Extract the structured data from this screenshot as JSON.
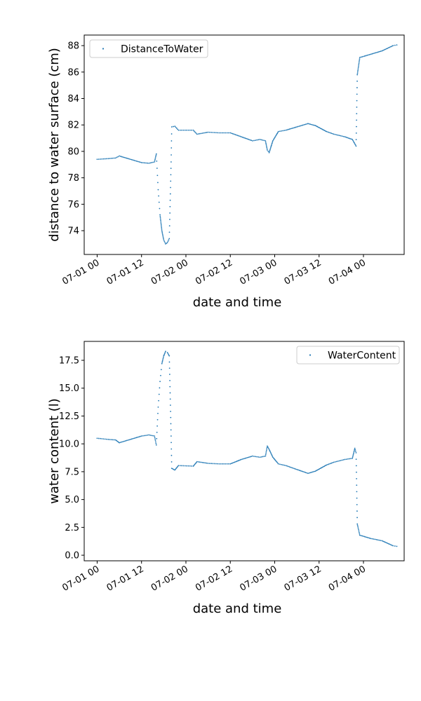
{
  "chart_data": [
    {
      "type": "scatter",
      "xlabel": "date and time",
      "ylabel": "distance to water surface (cm)",
      "ylim": [
        72.2,
        88.8
      ],
      "xlim": [
        "2019-06-30T20:30",
        "2019-07-04T11:00"
      ],
      "x_ticks": [
        {
          "t": "2019-07-01T00:00",
          "label": "07-01 00"
        },
        {
          "t": "2019-07-01T12:00",
          "label": "07-01 12"
        },
        {
          "t": "2019-07-02T00:00",
          "label": "07-02 00"
        },
        {
          "t": "2019-07-02T12:00",
          "label": "07-02 12"
        },
        {
          "t": "2019-07-03T00:00",
          "label": "07-03 00"
        },
        {
          "t": "2019-07-03T12:00",
          "label": "07-03 12"
        },
        {
          "t": "2019-07-04T00:00",
          "label": "07-04 00"
        }
      ],
      "y_ticks": [
        74,
        76,
        78,
        80,
        82,
        84,
        86,
        88
      ],
      "grid": false,
      "legend_position": "upper-left",
      "series": [
        {
          "name": "DistanceToWater",
          "color": "#1f77b4",
          "points": [
            [
              "2019-07-01T00:00",
              79.4
            ],
            [
              "2019-07-01T03:00",
              79.45
            ],
            [
              "2019-07-01T05:00",
              79.5
            ],
            [
              "2019-07-01T06:00",
              79.65
            ],
            [
              "2019-07-01T09:00",
              79.4
            ],
            [
              "2019-07-01T12:00",
              79.15
            ],
            [
              "2019-07-01T14:00",
              79.1
            ],
            [
              "2019-07-01T15:30",
              79.2
            ],
            [
              "2019-07-01T16:00",
              79.8
            ],
            [
              "2019-07-01T16:30",
              77.1
            ],
            [
              "2019-07-01T17:00",
              75.2
            ],
            [
              "2019-07-01T17:30",
              74.0
            ],
            [
              "2019-07-01T18:00",
              73.3
            ],
            [
              "2019-07-01T18:30",
              73.0
            ],
            [
              "2019-07-01T19:00",
              73.1
            ],
            [
              "2019-07-01T19:30",
              73.4
            ],
            [
              "2019-07-01T20:00",
              79.2
            ],
            [
              "2019-07-01T20:10",
              81.85
            ],
            [
              "2019-07-01T21:00",
              81.9
            ],
            [
              "2019-07-01T22:00",
              81.6
            ],
            [
              "2019-07-02T02:00",
              81.6
            ],
            [
              "2019-07-02T03:00",
              81.3
            ],
            [
              "2019-07-02T06:00",
              81.45
            ],
            [
              "2019-07-02T09:00",
              81.4
            ],
            [
              "2019-07-02T12:00",
              81.4
            ],
            [
              "2019-07-02T15:00",
              81.1
            ],
            [
              "2019-07-02T18:00",
              80.8
            ],
            [
              "2019-07-02T20:00",
              80.9
            ],
            [
              "2019-07-02T21:30",
              80.8
            ],
            [
              "2019-07-02T22:00",
              80.1
            ],
            [
              "2019-07-02T22:30",
              79.9
            ],
            [
              "2019-07-02T23:30",
              80.8
            ],
            [
              "2019-07-03T01:00",
              81.5
            ],
            [
              "2019-07-03T03:00",
              81.6
            ],
            [
              "2019-07-03T06:00",
              81.85
            ],
            [
              "2019-07-03T09:00",
              82.1
            ],
            [
              "2019-07-03T11:00",
              81.95
            ],
            [
              "2019-07-03T14:00",
              81.5
            ],
            [
              "2019-07-03T16:00",
              81.3
            ],
            [
              "2019-07-03T19:00",
              81.1
            ],
            [
              "2019-07-03T21:00",
              80.9
            ],
            [
              "2019-07-03T22:00",
              80.4
            ],
            [
              "2019-07-03T22:20",
              85.8
            ],
            [
              "2019-07-03T23:00",
              87.1
            ],
            [
              "2019-07-04T02:00",
              87.35
            ],
            [
              "2019-07-04T05:00",
              87.6
            ],
            [
              "2019-07-04T08:00",
              88.0
            ],
            [
              "2019-07-04T09:00",
              88.05
            ]
          ]
        }
      ]
    },
    {
      "type": "scatter",
      "xlabel": "date and time",
      "ylabel": "water content (l)",
      "ylim": [
        -0.5,
        19.2
      ],
      "xlim": [
        "2019-06-30T20:30",
        "2019-07-04T11:00"
      ],
      "x_ticks": [
        {
          "t": "2019-07-01T00:00",
          "label": "07-01 00"
        },
        {
          "t": "2019-07-01T12:00",
          "label": "07-01 12"
        },
        {
          "t": "2019-07-02T00:00",
          "label": "07-02 00"
        },
        {
          "t": "2019-07-02T12:00",
          "label": "07-02 12"
        },
        {
          "t": "2019-07-03T00:00",
          "label": "07-03 00"
        },
        {
          "t": "2019-07-03T12:00",
          "label": "07-03 12"
        },
        {
          "t": "2019-07-04T00:00",
          "label": "07-04 00"
        }
      ],
      "y_ticks": [
        "0.0",
        "2.5",
        "5.0",
        "7.5",
        "10.0",
        "12.5",
        "15.0",
        "17.5"
      ],
      "grid": false,
      "legend_position": "upper-right",
      "series": [
        {
          "name": "WaterContent",
          "color": "#1f77b4",
          "points": [
            [
              "2019-07-01T00:00",
              10.5
            ],
            [
              "2019-07-01T03:00",
              10.4
            ],
            [
              "2019-07-01T05:00",
              10.35
            ],
            [
              "2019-07-01T06:00",
              10.1
            ],
            [
              "2019-07-01T09:00",
              10.4
            ],
            [
              "2019-07-01T12:00",
              10.7
            ],
            [
              "2019-07-01T14:00",
              10.8
            ],
            [
              "2019-07-01T15:30",
              10.7
            ],
            [
              "2019-07-01T16:00",
              9.9
            ],
            [
              "2019-07-01T16:30",
              13.3
            ],
            [
              "2019-07-01T17:00",
              15.6
            ],
            [
              "2019-07-01T17:30",
              17.2
            ],
            [
              "2019-07-01T18:00",
              17.9
            ],
            [
              "2019-07-01T18:30",
              18.3
            ],
            [
              "2019-07-01T19:00",
              18.2
            ],
            [
              "2019-07-01T19:30",
              17.9
            ],
            [
              "2019-07-01T20:00",
              10.7
            ],
            [
              "2019-07-01T20:10",
              7.8
            ],
            [
              "2019-07-01T21:00",
              7.65
            ],
            [
              "2019-07-01T22:00",
              8.05
            ],
            [
              "2019-07-02T02:00",
              8.0
            ],
            [
              "2019-07-02T03:00",
              8.4
            ],
            [
              "2019-07-02T06:00",
              8.25
            ],
            [
              "2019-07-02T09:00",
              8.2
            ],
            [
              "2019-07-02T12:00",
              8.2
            ],
            [
              "2019-07-02T15:00",
              8.6
            ],
            [
              "2019-07-02T18:00",
              8.9
            ],
            [
              "2019-07-02T20:00",
              8.8
            ],
            [
              "2019-07-02T21:30",
              8.9
            ],
            [
              "2019-07-02T22:00",
              9.8
            ],
            [
              "2019-07-02T22:30",
              9.5
            ],
            [
              "2019-07-02T23:30",
              8.8
            ],
            [
              "2019-07-03T01:00",
              8.2
            ],
            [
              "2019-07-03T03:00",
              8.05
            ],
            [
              "2019-07-03T06:00",
              7.7
            ],
            [
              "2019-07-03T09:00",
              7.35
            ],
            [
              "2019-07-03T11:00",
              7.55
            ],
            [
              "2019-07-03T14:00",
              8.1
            ],
            [
              "2019-07-03T16:00",
              8.35
            ],
            [
              "2019-07-03T19:00",
              8.6
            ],
            [
              "2019-07-03T21:00",
              8.7
            ],
            [
              "2019-07-03T21:40",
              9.6
            ],
            [
              "2019-07-03T22:00",
              9.2
            ],
            [
              "2019-07-03T22:20",
              2.8
            ],
            [
              "2019-07-03T23:00",
              1.8
            ],
            [
              "2019-07-04T02:00",
              1.5
            ],
            [
              "2019-07-04T05:00",
              1.3
            ],
            [
              "2019-07-04T08:00",
              0.85
            ],
            [
              "2019-07-04T09:00",
              0.8
            ]
          ]
        }
      ]
    }
  ]
}
